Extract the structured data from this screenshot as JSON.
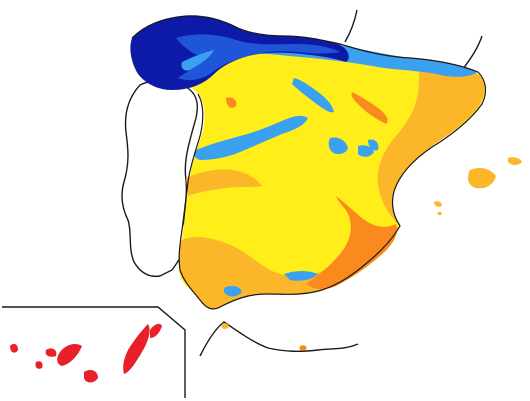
{
  "map": {
    "colors": {
      "background": "#ffffff",
      "outline": "#1a1a1a",
      "zone_dark_blue": "#0d1aa8",
      "zone_mid_blue": "#1f56d8",
      "zone_light_blue": "#3aa0f0",
      "zone_yellow": "#ffee1a",
      "zone_orange_light": "#fbb62a",
      "zone_orange": "#fa8a1e",
      "zone_red": "#e8202a"
    },
    "legend": [],
    "labels": []
  }
}
